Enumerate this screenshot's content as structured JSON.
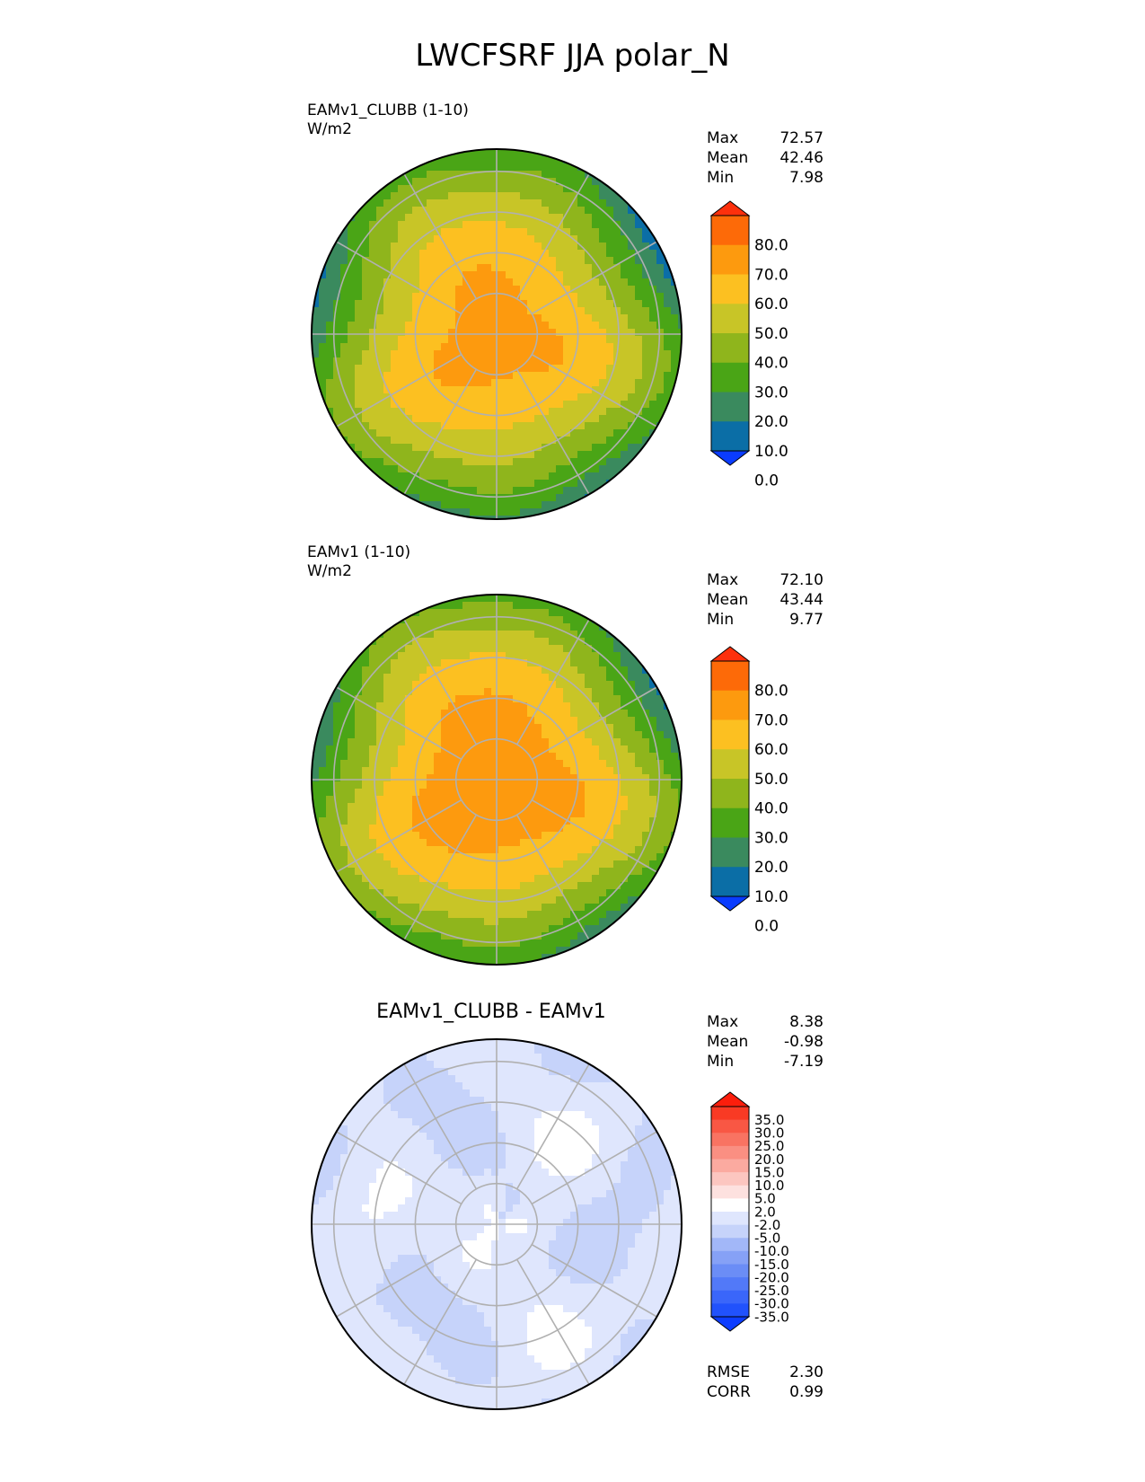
{
  "title": "LWCFSRF JJA polar_N",
  "panels": [
    {
      "id": "test",
      "label": "EAMv1_CLUBB (1-10)",
      "units": "W/m2",
      "stats": [
        {
          "name": "Max",
          "value": "72.57"
        },
        {
          "name": "Mean",
          "value": "42.46"
        },
        {
          "name": "Min",
          "value": "7.98"
        }
      ]
    },
    {
      "id": "reference",
      "label": "EAMv1 (1-10)",
      "units": "W/m2",
      "stats": [
        {
          "name": "Max",
          "value": "72.10"
        },
        {
          "name": "Mean",
          "value": "43.44"
        },
        {
          "name": "Min",
          "value": "9.77"
        }
      ]
    },
    {
      "id": "difference",
      "label": "EAMv1_CLUBB - EAMv1",
      "stats": [
        {
          "name": "Max",
          "value": "8.38"
        },
        {
          "name": "Mean",
          "value": "-0.98"
        },
        {
          "name": "Min",
          "value": "-7.19"
        }
      ],
      "metrics": [
        {
          "name": "RMSE",
          "value": "2.30"
        },
        {
          "name": "CORR",
          "value": "0.99"
        }
      ]
    }
  ],
  "chart_data": [
    {
      "type": "heatmap",
      "projection": "north polar stereographic",
      "title": "EAMv1_CLUBB (1-10)",
      "units": "W/m2",
      "levels": [
        0,
        10,
        20,
        30,
        40,
        50,
        60,
        70,
        80
      ],
      "colorbar_labels": [
        "80.0",
        "70.0",
        "60.0",
        "50.0",
        "40.0",
        "30.0",
        "20.0",
        "10.0",
        "0.0"
      ],
      "colors": [
        "#0a3cff",
        "#0b6ea6",
        "#3a8a5e",
        "#4aa516",
        "#8fb51c",
        "#c8c527",
        "#fcc021",
        "#fd9a0e",
        "#fd6a08",
        "#fd300c"
      ],
      "max": 72.57,
      "mean": 42.46,
      "min": 7.98
    },
    {
      "type": "heatmap",
      "projection": "north polar stereographic",
      "title": "EAMv1 (1-10)",
      "units": "W/m2",
      "levels": [
        0,
        10,
        20,
        30,
        40,
        50,
        60,
        70,
        80
      ],
      "colorbar_labels": [
        "80.0",
        "70.0",
        "60.0",
        "50.0",
        "40.0",
        "30.0",
        "20.0",
        "10.0",
        "0.0"
      ],
      "colors": [
        "#0a3cff",
        "#0b6ea6",
        "#3a8a5e",
        "#4aa516",
        "#8fb51c",
        "#c8c527",
        "#fcc021",
        "#fd9a0e",
        "#fd6a08",
        "#fd300c"
      ],
      "max": 72.1,
      "mean": 43.44,
      "min": 9.77
    },
    {
      "type": "heatmap",
      "projection": "north polar stereographic",
      "title": "EAMv1_CLUBB - EAMv1",
      "levels": [
        -35,
        -30,
        -25,
        -20,
        -15,
        -10,
        -5,
        -2,
        2,
        5,
        10,
        15,
        20,
        25,
        30,
        35
      ],
      "colorbar_labels": [
        "35.0",
        "30.0",
        "25.0",
        "20.0",
        "15.0",
        "10.0",
        "5.0",
        "2.0",
        "-2.0",
        "-5.0",
        "-10.0",
        "-15.0",
        "-20.0",
        "-25.0",
        "-30.0",
        "-35.0"
      ],
      "colors": [
        "#0d3dff",
        "#2152fc",
        "#3a66fa",
        "#5279f8",
        "#6b8df6",
        "#86a1f6",
        "#a2b7f8",
        "#c6d3fa",
        "#dfe6fd",
        "#ffffff",
        "#fde1df",
        "#fcc6c0",
        "#fbaaa0",
        "#fa8f82",
        "#f97362",
        "#f95744",
        "#f93a24",
        "#fc1e0c"
      ],
      "max": 8.38,
      "mean": -0.98,
      "min": -7.19,
      "rmse": 2.3,
      "corr": 0.99
    }
  ]
}
